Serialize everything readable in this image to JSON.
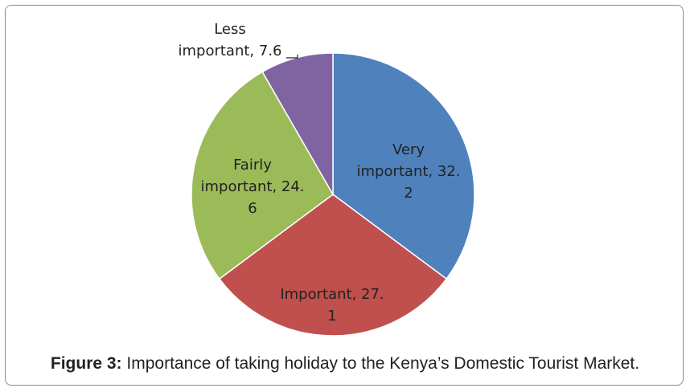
{
  "chart_data": {
    "type": "pie",
    "slices": [
      {
        "name": "Very important",
        "value": 32.2,
        "color": "#4F81BD",
        "label_lines": [
          "Very",
          "important, 32.",
          "2"
        ]
      },
      {
        "name": "Important",
        "value": 27.1,
        "color": "#C0504D",
        "label_lines": [
          "Important, 27.",
          "1"
        ]
      },
      {
        "name": "Fairly important",
        "value": 24.6,
        "color": "#9BBB59",
        "label_lines": [
          "Fairly",
          "important, 24.",
          "6"
        ]
      },
      {
        "name": "Less important",
        "value": 7.6,
        "color": "#8064A2",
        "label_lines": [
          "Less",
          "important, 7.6"
        ]
      }
    ],
    "start_angle": "12 o'clock",
    "direction": "clockwise",
    "legend": "none"
  },
  "caption": {
    "prefix": "Figure 3:",
    "text": " Importance of taking holiday to the Kenya’s Domestic Tourist Market."
  }
}
